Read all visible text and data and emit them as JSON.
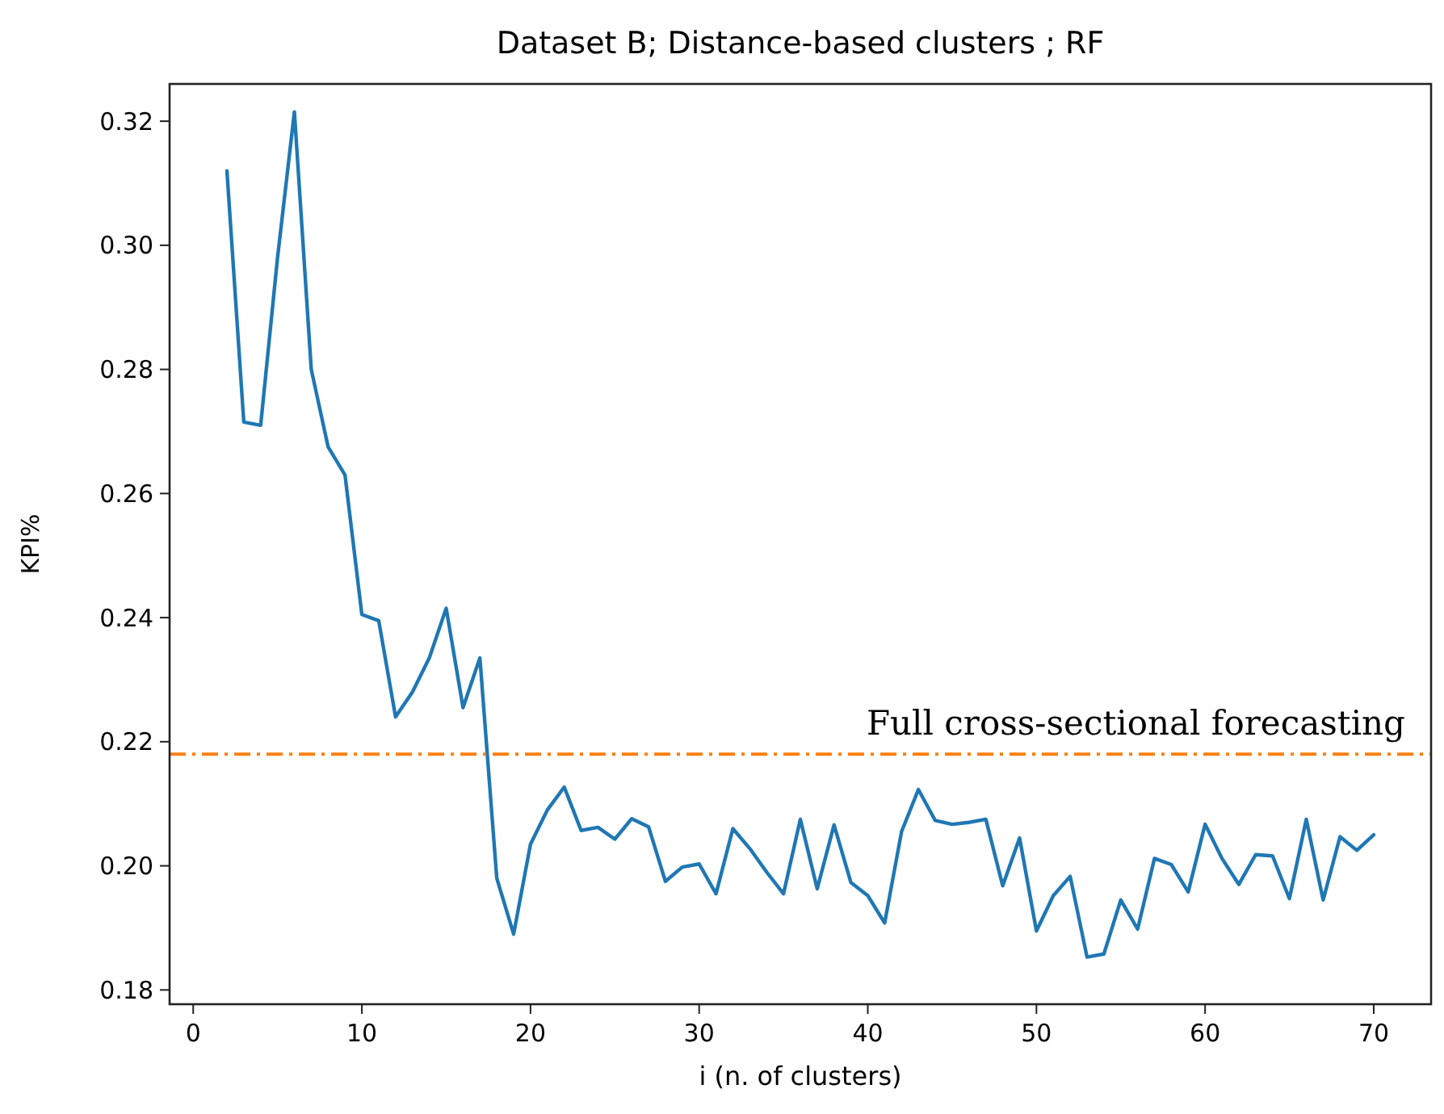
{
  "chart_data": {
    "type": "line",
    "title": "Dataset B; Distance-based clusters ; RF",
    "xlabel": "i (n. of clusters)",
    "ylabel": "KPI%",
    "x": [
      2,
      3,
      4,
      5,
      6,
      7,
      8,
      9,
      10,
      11,
      12,
      13,
      14,
      15,
      16,
      17,
      18,
      19,
      20,
      21,
      22,
      23,
      24,
      25,
      26,
      27,
      28,
      29,
      30,
      31,
      32,
      33,
      34,
      35,
      36,
      37,
      38,
      39,
      40,
      41,
      42,
      43,
      44,
      45,
      46,
      47,
      48,
      49,
      50,
      51,
      52,
      53,
      54,
      55,
      56,
      57,
      58,
      59,
      60,
      61,
      62,
      63,
      64,
      65,
      66,
      67,
      68,
      69,
      70
    ],
    "series": [
      {
        "color": "#1f77b4",
        "values": [
          0.312,
          0.2715,
          0.271,
          0.298,
          0.3215,
          0.28,
          0.2675,
          0.263,
          0.2405,
          0.2395,
          0.224,
          0.228,
          0.2335,
          0.2415,
          0.2255,
          0.2335,
          0.198,
          0.189,
          0.2035,
          0.209,
          0.2127,
          0.2057,
          0.2062,
          0.2043,
          0.2076,
          0.2063,
          0.1975,
          0.1998,
          0.2003,
          0.1955,
          0.206,
          0.2028,
          0.199,
          0.1955,
          0.2075,
          0.1963,
          0.2066,
          0.1973,
          0.1952,
          0.1908,
          0.2055,
          0.2123,
          0.2073,
          0.2067,
          0.207,
          0.2075,
          0.1968,
          0.2045,
          0.1895,
          0.1952,
          0.1983,
          0.1853,
          0.1858,
          0.1945,
          0.1898,
          0.2012,
          0.2002,
          0.1958,
          0.2067,
          0.2012,
          0.197,
          0.2018,
          0.2016,
          0.1947,
          0.2075,
          0.1945,
          0.2047,
          0.2025,
          0.205
        ]
      }
    ],
    "xlim": [
      -1.4,
      73.4
    ],
    "ylim": [
      0.1777,
      0.326
    ],
    "xticks": [
      0,
      10,
      20,
      30,
      40,
      50,
      60,
      70
    ],
    "yticks": [
      {
        "value": 0.18,
        "label": "0.18"
      },
      {
        "value": 0.2,
        "label": "0.20"
      },
      {
        "value": 0.22,
        "label": "0.22"
      },
      {
        "value": 0.24,
        "label": "0.24"
      },
      {
        "value": 0.26,
        "label": "0.26"
      },
      {
        "value": 0.28,
        "label": "0.28"
      },
      {
        "value": 0.3,
        "label": "0.30"
      },
      {
        "value": 0.32,
        "label": "0.32"
      }
    ],
    "ref_lines": [
      {
        "axis": "y",
        "value": 0.218,
        "label": "Full cross-sectional forecasting",
        "color": "#ff7f0e",
        "line_style": "dashdot"
      }
    ],
    "marker": "none",
    "line_style": "solid"
  }
}
